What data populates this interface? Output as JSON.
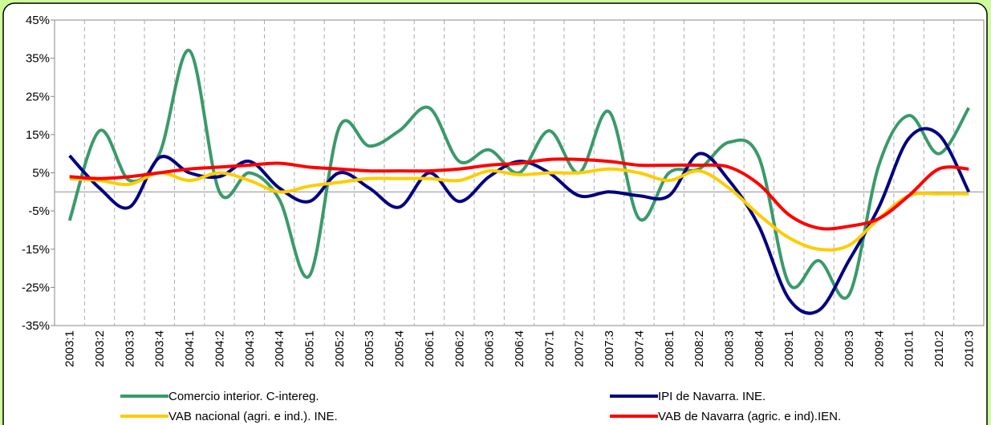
{
  "chart_data": {
    "type": "line",
    "categories": [
      "2003:1",
      "2003:2",
      "2003:3",
      "2003:4",
      "2004:1",
      "2004:2",
      "2004:3",
      "2004:4",
      "2005:1",
      "2005:2",
      "2005:3",
      "2005:4",
      "2006:1",
      "2006:2",
      "2006:3",
      "2006:4",
      "2007:1",
      "2007:2",
      "2007:3",
      "2007:4",
      "2008:1",
      "2008:2",
      "2008:3",
      "2008:4",
      "2009:1",
      "2009:2",
      "2009:3",
      "2009:4",
      "2010:1",
      "2010:2",
      "2010:3"
    ],
    "series": [
      {
        "name": "Comercio interior. C-intereg.",
        "color": "#3a9a6a",
        "values": [
          -7.5,
          16,
          3,
          10,
          37,
          0,
          5,
          -2,
          -22,
          17,
          12,
          16,
          22,
          8,
          11,
          5,
          16,
          5,
          21,
          -7,
          5,
          6,
          13,
          9,
          -24,
          -18,
          -27,
          7,
          20,
          10,
          22
        ]
      },
      {
        "name": "IPI de Navarra. INE.",
        "color": "#000080",
        "values": [
          9.5,
          1,
          -4,
          9,
          5,
          4,
          8,
          1,
          -2.5,
          5,
          1,
          -4,
          5,
          -2.5,
          4,
          8,
          5,
          -1,
          0,
          -1,
          -1,
          10,
          3,
          -9,
          -28,
          -31,
          -18,
          -4,
          14,
          15,
          0
        ]
      },
      {
        "name": "VAB nacional (agri. e ind.). INE.",
        "color": "#ffcc00",
        "values": [
          3.5,
          3,
          2,
          5,
          3,
          5,
          3,
          0,
          1.5,
          2.5,
          3.5,
          3.5,
          3.5,
          3,
          5.5,
          4.5,
          5,
          5,
          6,
          5,
          3,
          5.5,
          1,
          -6,
          -12,
          -15,
          -14,
          -7,
          -1,
          -0.5,
          -0.5
        ]
      },
      {
        "name": "VAB de Navarra (agric. e ind).IEN.",
        "color": "#ff0000",
        "values": [
          4,
          3.5,
          4,
          5,
          6,
          6.5,
          7,
          7.5,
          6.5,
          6,
          5.5,
          5.5,
          5.5,
          6,
          7,
          7.5,
          8.5,
          8.5,
          8,
          7,
          7,
          7,
          6.5,
          2,
          -6,
          -9.5,
          -9,
          -7,
          -1,
          6,
          6
        ]
      }
    ],
    "ylim": [
      -35,
      45
    ],
    "yticks": [
      {
        "value": -35,
        "label": "-35%"
      },
      {
        "value": -25,
        "label": "-25%"
      },
      {
        "value": -15,
        "label": "-15%"
      },
      {
        "value": -5,
        "label": "-5%"
      },
      {
        "value": 5,
        "label": "5%"
      },
      {
        "value": 15,
        "label": "15%"
      },
      {
        "value": 25,
        "label": "25%"
      },
      {
        "value": 35,
        "label": "35%"
      },
      {
        "value": 45,
        "label": "45%"
      }
    ],
    "smooth": true
  }
}
